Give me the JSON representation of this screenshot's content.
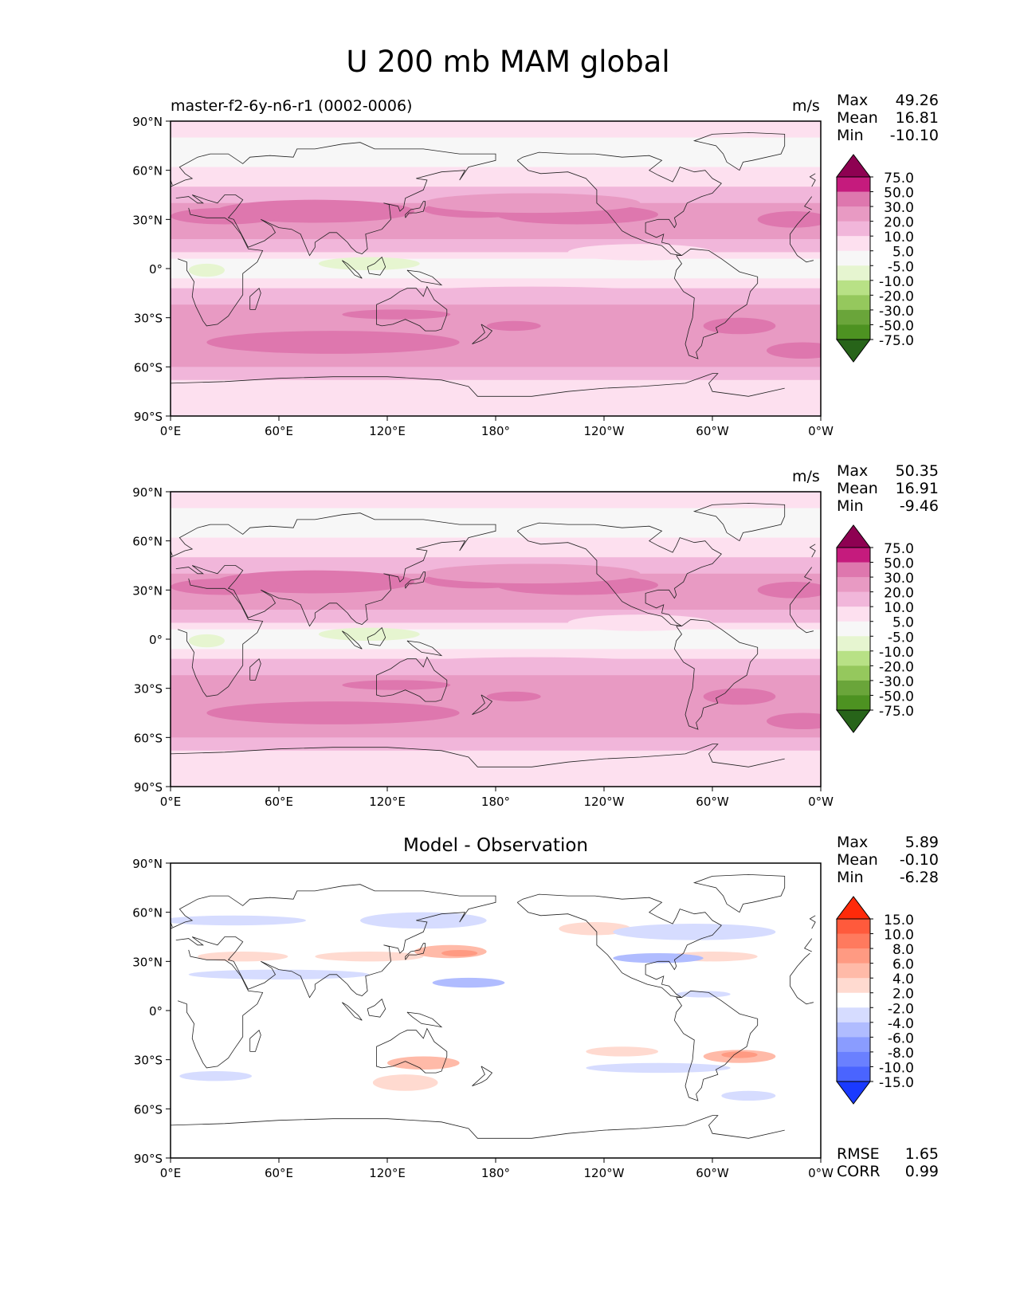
{
  "figure_title": "U 200 mb MAM global",
  "panels": [
    {
      "id": "model",
      "left_title": "master-f2-6y-n6-r1 (0002-0006)",
      "center_title": "",
      "units": "m/s",
      "stats": [
        {
          "label": "Max",
          "value": "49.26"
        },
        {
          "label": "Mean",
          "value": "16.81"
        },
        {
          "label": "Min",
          "value": "-10.10"
        }
      ],
      "extra_stats": [],
      "colorbar": {
        "labels": [
          "75.0",
          "50.0",
          "30.0",
          "20.0",
          "10.0",
          "5.0",
          "-5.0",
          "-10.0",
          "-20.0",
          "-30.0",
          "-50.0",
          "-75.0"
        ],
        "colors": [
          "#8e0152",
          "#c51b7d",
          "#de77ae",
          "#e89ac3",
          "#f1b6da",
          "#fde0ef",
          "#f7f7f7",
          "#e6f5d0",
          "#b8e186",
          "#95c85d",
          "#6aa53a",
          "#4d9221",
          "#276419"
        ]
      },
      "lat_ticks": [
        "90°N",
        "60°N",
        "30°N",
        "0°",
        "30°S",
        "60°S",
        "90°S"
      ],
      "lon_ticks": [
        "0°E",
        "60°E",
        "120°E",
        "180°",
        "120°W",
        "60°W",
        "0°W"
      ]
    },
    {
      "id": "obs",
      "left_title": "",
      "center_title": "",
      "units": "m/s",
      "stats": [
        {
          "label": "Max",
          "value": "50.35"
        },
        {
          "label": "Mean",
          "value": "16.91"
        },
        {
          "label": "Min",
          "value": "-9.46"
        }
      ],
      "extra_stats": [],
      "colorbar": {
        "labels": [
          "75.0",
          "50.0",
          "30.0",
          "20.0",
          "10.0",
          "5.0",
          "-5.0",
          "-10.0",
          "-20.0",
          "-30.0",
          "-50.0",
          "-75.0"
        ],
        "colors": [
          "#8e0152",
          "#c51b7d",
          "#de77ae",
          "#e89ac3",
          "#f1b6da",
          "#fde0ef",
          "#f7f7f7",
          "#e6f5d0",
          "#b8e186",
          "#95c85d",
          "#6aa53a",
          "#4d9221",
          "#276419"
        ]
      },
      "lat_ticks": [
        "90°N",
        "60°N",
        "30°N",
        "0°",
        "30°S",
        "60°S",
        "90°S"
      ],
      "lon_ticks": [
        "0°E",
        "60°E",
        "120°E",
        "180°",
        "120°W",
        "60°W",
        "0°W"
      ]
    },
    {
      "id": "diff",
      "left_title": "",
      "center_title": "Model - Observation",
      "units": "",
      "stats": [
        {
          "label": "Max",
          "value": "5.89"
        },
        {
          "label": "Mean",
          "value": "-0.10"
        },
        {
          "label": "Min",
          "value": "-6.28"
        }
      ],
      "extra_stats": [
        {
          "label": "RMSE",
          "value": "1.65"
        },
        {
          "label": "CORR",
          "value": "0.99"
        }
      ],
      "colorbar": {
        "labels": [
          "15.0",
          "10.0",
          "8.0",
          "6.0",
          "4.0",
          "2.0",
          "-2.0",
          "-4.0",
          "-6.0",
          "-8.0",
          "-10.0",
          "-15.0"
        ],
        "colors": [
          "#ff2a0a",
          "#ff5a3c",
          "#ff7a5e",
          "#ff9a82",
          "#ffbaa8",
          "#ffdad0",
          "#ffffff",
          "#d6dcff",
          "#b0bcff",
          "#8a9cff",
          "#6a80ff",
          "#4a64ff",
          "#1a3aff"
        ]
      },
      "lat_ticks": [
        "90°N",
        "60°N",
        "30°N",
        "0°",
        "30°S",
        "60°S",
        "90°S"
      ],
      "lon_ticks": [
        "0°E",
        "60°E",
        "120°E",
        "180°",
        "120°W",
        "60°W",
        "0°W"
      ]
    }
  ],
  "chart_data": [
    {
      "type": "heatmap",
      "title": "master-f2-6y-n6-r1 (0002-0006)",
      "field": "U 200 mb MAM",
      "units": "m/s",
      "x_ticks": [
        "0°E",
        "60°E",
        "120°E",
        "180°",
        "120°W",
        "60°W",
        "0°W"
      ],
      "y_ticks": [
        "90°N",
        "60°N",
        "30°N",
        "0°",
        "30°S",
        "60°S",
        "90°S"
      ],
      "xlim": [
        0,
        360
      ],
      "ylim": [
        -90,
        90
      ],
      "max": 49.26,
      "mean": 16.81,
      "min": -10.1,
      "levels": [
        -75,
        -50,
        -30,
        -20,
        -10,
        -5,
        5,
        10,
        20,
        30,
        50,
        75
      ]
    },
    {
      "type": "heatmap",
      "title": "",
      "field": "U 200 mb MAM",
      "units": "m/s",
      "x_ticks": [
        "0°E",
        "60°E",
        "120°E",
        "180°",
        "120°W",
        "60°W",
        "0°W"
      ],
      "y_ticks": [
        "90°N",
        "60°N",
        "30°N",
        "0°",
        "30°S",
        "60°S",
        "90°S"
      ],
      "xlim": [
        0,
        360
      ],
      "ylim": [
        -90,
        90
      ],
      "max": 50.35,
      "mean": 16.91,
      "min": -9.46,
      "levels": [
        -75,
        -50,
        -30,
        -20,
        -10,
        -5,
        5,
        10,
        20,
        30,
        50,
        75
      ]
    },
    {
      "type": "heatmap",
      "title": "Model - Observation",
      "field": "U 200 mb MAM difference",
      "units": "",
      "x_ticks": [
        "0°E",
        "60°E",
        "120°E",
        "180°",
        "120°W",
        "60°W",
        "0°W"
      ],
      "y_ticks": [
        "90°N",
        "60°N",
        "30°N",
        "0°",
        "30°S",
        "60°S",
        "90°S"
      ],
      "xlim": [
        0,
        360
      ],
      "ylim": [
        -90,
        90
      ],
      "max": 5.89,
      "mean": -0.1,
      "min": -6.28,
      "rmse": 1.65,
      "corr": 0.99,
      "levels": [
        -15,
        -10,
        -8,
        -6,
        -4,
        -2,
        2,
        4,
        6,
        8,
        10,
        15
      ]
    }
  ]
}
